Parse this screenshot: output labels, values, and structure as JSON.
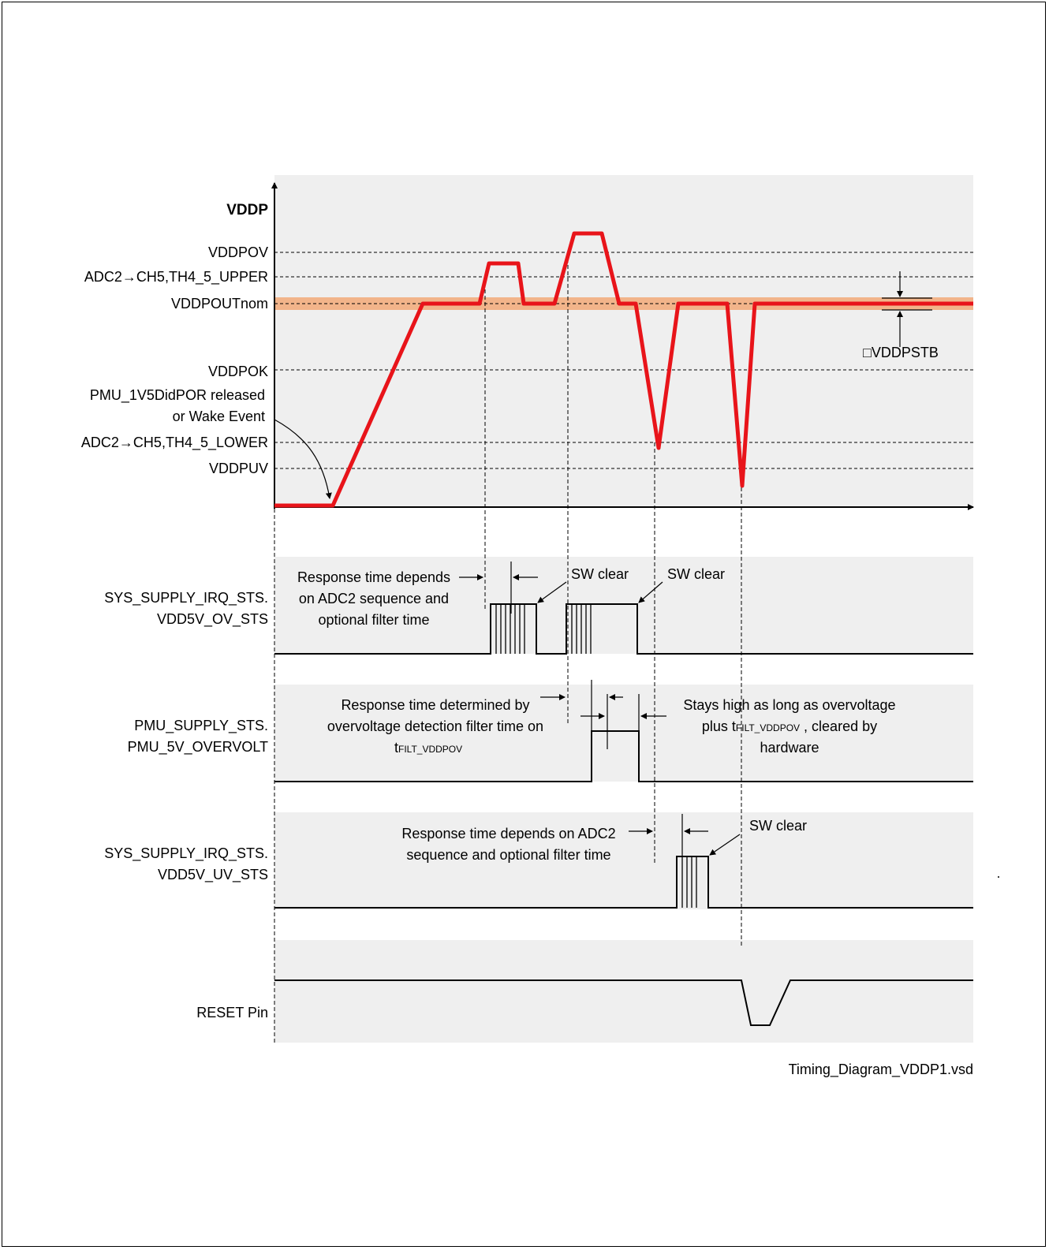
{
  "diagram": {
    "axis_title": "VDDP",
    "levels": {
      "ov": "VDDPOV",
      "upper": "ADC2→CH5,TH4_5_UPPER",
      "nom": "VDDPOUTnom",
      "ok": "VDDPOK",
      "por_line1": "PMU_1V5DidPOR released",
      "por_line2": "or Wake Event",
      "lower": "ADC2→CH5,TH4_5_LOWER",
      "uv": "VDDPUV"
    },
    "stb_label": "□VDDPSTB",
    "signals": {
      "ov_sts_1": "SYS_SUPPLY_IRQ_STS.",
      "ov_sts_2": "VDD5V_OV_STS",
      "overvolt_1": "PMU_SUPPLY_STS.",
      "overvolt_2": "PMU_5V_OVERVOLT",
      "uv_sts_1": "SYS_SUPPLY_IRQ_STS.",
      "uv_sts_2": "VDD5V_UV_STS",
      "reset": "RESET Pin"
    },
    "notes": {
      "resp1_l1": "Response time depends",
      "resp1_l2": "on ADC2 sequence and",
      "resp1_l3": "optional filter time",
      "sw_clear": "SW clear",
      "resp2_l1": "Response time determined by",
      "resp2_l2": "overvoltage detection filter time on",
      "resp2_l3_t": "t",
      "resp2_l3_sub": "FILT_VDDPOV",
      "stays_l1": "Stays high as long as overvoltage",
      "stays_l2_pre": "plus t",
      "stays_l2_sub": "FILT_VDDPOV",
      "stays_l2_post": " , cleared by",
      "stays_l3": "hardware",
      "resp3_l1": "Response time depends on ADC2",
      "resp3_l2": "sequence and optional filter time"
    },
    "footer": "Timing_Diagram_VDDP1.vsd",
    "colors": {
      "waveform": "#e8141a",
      "band": "#f2b48a",
      "panel": "#efefef"
    }
  }
}
